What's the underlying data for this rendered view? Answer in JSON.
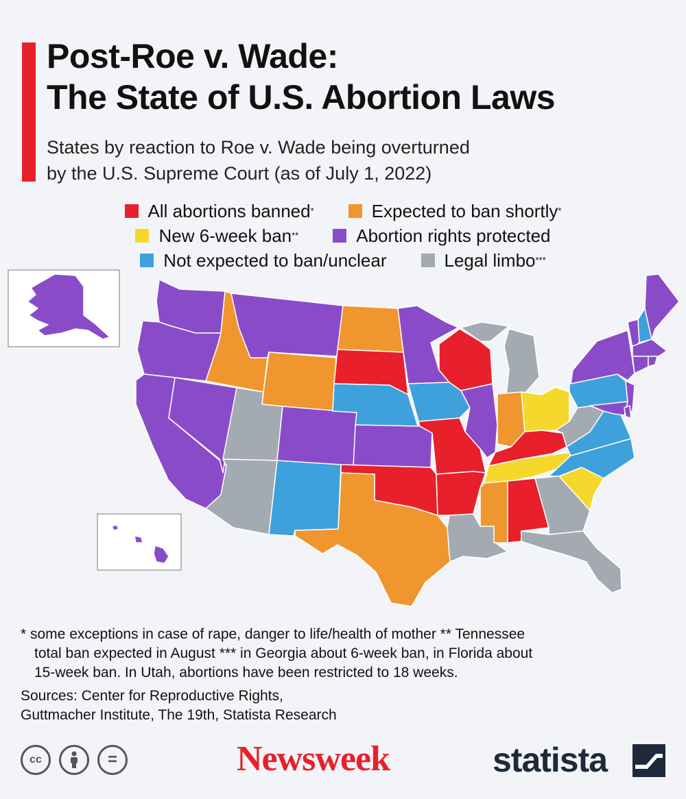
{
  "title": {
    "line1": "Post-Roe v. Wade:",
    "line2": "The State of U.S. Abortion Laws"
  },
  "subtitle": {
    "line1": "States by reaction to Roe v. Wade being overturned",
    "line2": "by the U.S. Supreme Court (as of July 1, 2022)"
  },
  "legend": [
    {
      "label": "All abortions banned",
      "mark": "*",
      "color": "#e8202b"
    },
    {
      "label": "Expected to ban shortly",
      "mark": "*",
      "color": "#f0962e"
    },
    {
      "label": "New 6-week ban",
      "mark": "**",
      "color": "#f5d82b"
    },
    {
      "label": "Abortion rights protected",
      "mark": "",
      "color": "#8a4bc9"
    },
    {
      "label": "Not expected to ban/unclear",
      "mark": "",
      "color": "#3ea1dc"
    },
    {
      "label": "Legal limbo",
      "mark": "***",
      "color": "#a3aab2"
    }
  ],
  "notes": {
    "line1": "* some exceptions in case of rape, danger to life/health of mother     ** Tennessee",
    "line2": "total ban expected in August     *** in Georgia about 6-week ban, in Florida about",
    "line3": "15-week ban. In Utah, abortions have been restricted to 18 weeks."
  },
  "sources": {
    "line1": "Sources: Center for Reproductive Rights,",
    "line2": "Guttmacher Institute, The 19th, Statista Research"
  },
  "license_icons": [
    "cc-icon",
    "by-icon",
    "nd-icon"
  ],
  "license_glyphs": {
    "cc": "cc",
    "nd": "="
  },
  "brands": {
    "newsweek": "Newsweek",
    "statista": "statista"
  },
  "colors": {
    "banned": "#e8202b",
    "expected": "#f0962e",
    "six_week": "#f5d82b",
    "protected": "#8a4bc9",
    "unclear": "#3ea1dc",
    "limbo": "#a3aab2",
    "background": "#f2f4f7"
  }
}
